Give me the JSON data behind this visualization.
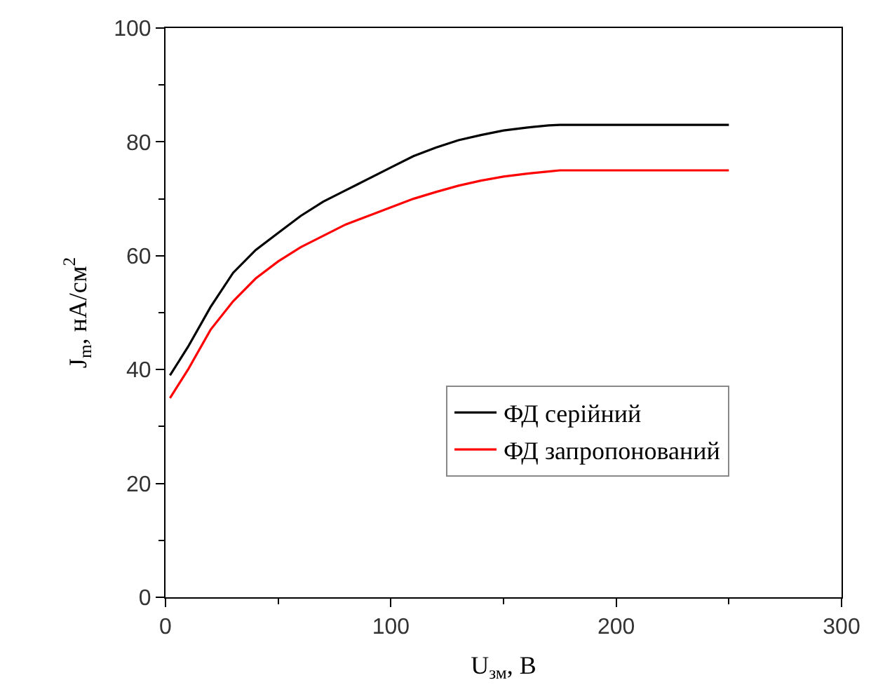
{
  "chart_data": {
    "type": "line",
    "xlabel": "U$_{зм}$, В",
    "ylabel": "J$_{m}$, нА/см$^{2}$",
    "xlim": [
      0,
      300
    ],
    "xticks": [
      0,
      100,
      200,
      300
    ],
    "ylim": [
      0,
      100
    ],
    "yticks": [
      0,
      20,
      40,
      60,
      80,
      100
    ],
    "grid": false,
    "legend": "bottom right",
    "line_style": "solid",
    "marker": "none",
    "series": [
      {
        "name": "ФД серійний",
        "color": "#000000",
        "x": [
          2,
          10,
          20,
          30,
          40,
          50,
          60,
          70,
          80,
          90,
          100,
          110,
          120,
          130,
          140,
          150,
          160,
          170,
          175,
          250
        ],
        "values": [
          39,
          44,
          51,
          57,
          61,
          64,
          67,
          69.5,
          71.5,
          73.5,
          75.5,
          77.5,
          79,
          80.3,
          81.2,
          82,
          82.5,
          82.9,
          83,
          83
        ]
      },
      {
        "name": "ФД запропонований",
        "color": "#ff0000",
        "x": [
          2,
          10,
          20,
          30,
          40,
          50,
          60,
          70,
          80,
          90,
          100,
          110,
          120,
          130,
          140,
          150,
          160,
          170,
          175,
          250
        ],
        "values": [
          35,
          40,
          47,
          52,
          56,
          59,
          61.5,
          63.5,
          65.5,
          67,
          68.5,
          70,
          71.2,
          72.3,
          73.2,
          73.9,
          74.4,
          74.8,
          75,
          75
        ]
      }
    ]
  }
}
